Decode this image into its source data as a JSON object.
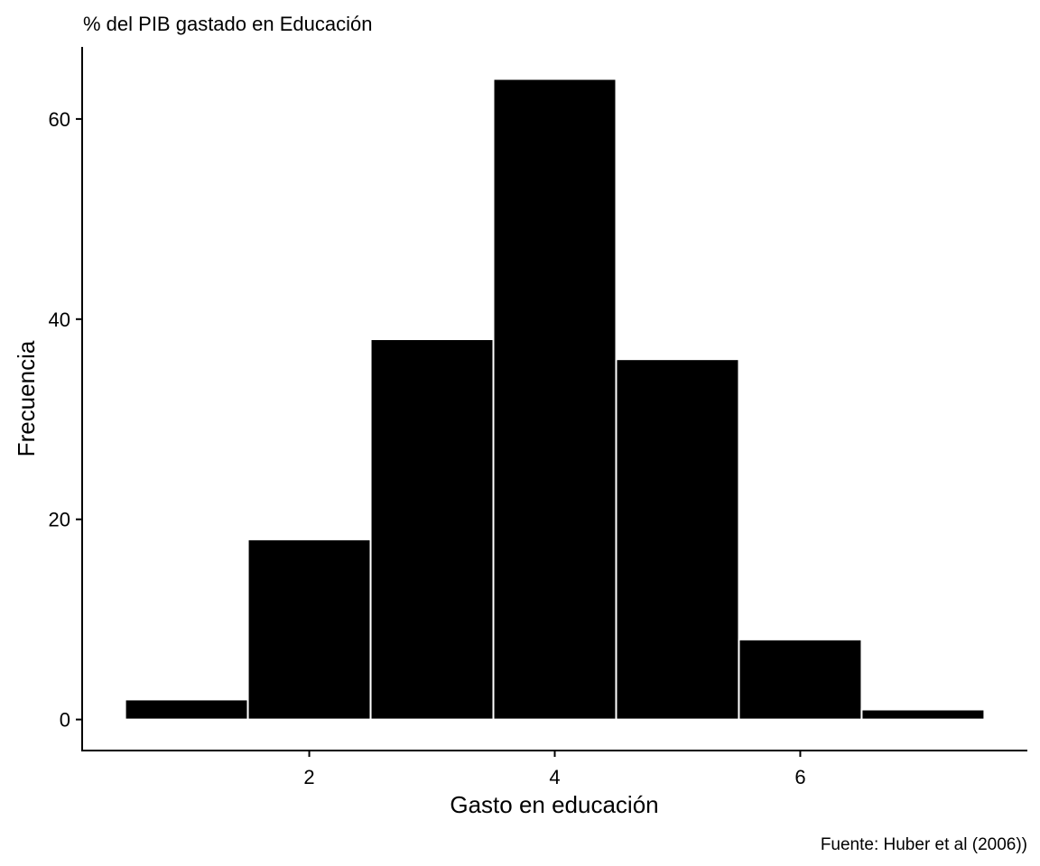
{
  "chart_data": {
    "type": "bar",
    "title": "% del PIB gastado en Educación",
    "xlabel": "Gasto en educación",
    "ylabel": "Frecuencia",
    "caption": "Fuente: Huber et al (2006))",
    "bins": [
      {
        "x0": 0.5,
        "x1": 1.5,
        "count": 2
      },
      {
        "x0": 1.5,
        "x1": 2.5,
        "count": 18
      },
      {
        "x0": 2.5,
        "x1": 3.5,
        "count": 38
      },
      {
        "x0": 3.5,
        "x1": 4.5,
        "count": 64
      },
      {
        "x0": 4.5,
        "x1": 5.5,
        "count": 36
      },
      {
        "x0": 5.5,
        "x1": 6.5,
        "count": 8
      },
      {
        "x0": 6.5,
        "x1": 7.5,
        "count": 1
      }
    ],
    "xticks": [
      "2",
      "4",
      "6"
    ],
    "yticks": [
      "0",
      "20",
      "40",
      "60"
    ],
    "xlim": [
      0.15,
      7.85
    ],
    "ylim": [
      -3.1,
      67.2
    ],
    "bar_color": "#000000",
    "bar_outline": "#ffffff",
    "grid": false,
    "legend": "none"
  }
}
